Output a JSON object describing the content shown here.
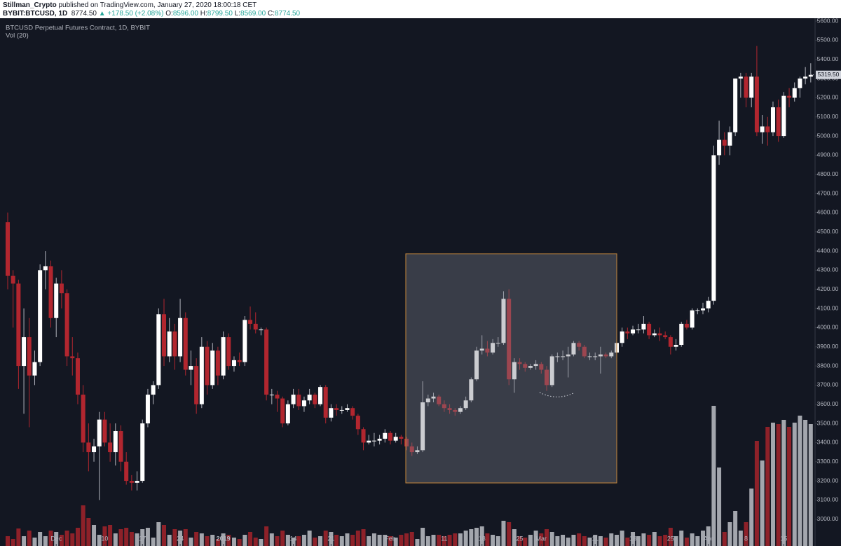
{
  "header": {
    "author": "Stillman_Crypto",
    "published": "published on TradingView.com, January 27, 2020 18:00:18 CET",
    "symbol": "BYBIT:BTCUSD, 1D",
    "price": "8774.50",
    "change": "▲ +178.50 (+2.08%)",
    "ohlc": [
      {
        "label": "O:",
        "value": "8596.00"
      },
      {
        "label": "H:",
        "value": "8799.50"
      },
      {
        "label": "L:",
        "value": "8569.00"
      },
      {
        "label": "C:",
        "value": "8774.50"
      }
    ]
  },
  "chart_data": {
    "type": "candlestick",
    "title": "BTCUSD Perpetual Futures Contract, 1D, BYBIT",
    "indicator": "Vol (20)",
    "colors": {
      "up": "#ffffff",
      "down": "#b2262f",
      "volume_up": "#a3a6ad",
      "volume_down": "#8e2129",
      "axis_text": "#b2b5be"
    },
    "ohlc": [
      [
        4550,
        4600,
        4200,
        4270
      ],
      [
        4270,
        4300,
        4000,
        4230
      ],
      [
        4230,
        4250,
        3680,
        3800
      ],
      [
        3800,
        4100,
        3550,
        3950
      ],
      [
        3950,
        4050,
        3480,
        3750
      ],
      [
        3750,
        3880,
        3700,
        3820
      ],
      [
        3820,
        4330,
        3800,
        4300
      ],
      [
        4300,
        4400,
        4200,
        4320
      ],
      [
        4320,
        4350,
        4000,
        4050
      ],
      [
        4050,
        4260,
        3950,
        4230
      ],
      [
        4230,
        4300,
        4100,
        4180
      ],
      [
        4180,
        4200,
        3800,
        3850
      ],
      [
        3850,
        3950,
        3750,
        3840
      ],
      [
        3840,
        3870,
        3600,
        3650
      ],
      [
        3650,
        3700,
        3350,
        3400
      ],
      [
        3400,
        3500,
        3250,
        3350
      ],
      [
        3350,
        3420,
        3300,
        3380
      ],
      [
        3380,
        3560,
        3100,
        3520
      ],
      [
        3520,
        3560,
        3380,
        3400
      ],
      [
        3400,
        3500,
        3300,
        3350
      ],
      [
        3350,
        3500,
        3280,
        3460
      ],
      [
        3460,
        3490,
        3250,
        3300
      ],
      [
        3300,
        3350,
        3180,
        3200
      ],
      [
        3200,
        3230,
        3150,
        3190
      ],
      [
        3190,
        3250,
        3150,
        3200
      ],
      [
        3200,
        3520,
        3190,
        3500
      ],
      [
        3500,
        3680,
        3480,
        3650
      ],
      [
        3650,
        3720,
        3600,
        3700
      ],
      [
        3700,
        4100,
        3680,
        4070
      ],
      [
        4070,
        4150,
        3800,
        3850
      ],
      [
        3850,
        4050,
        3820,
        3980
      ],
      [
        3980,
        4020,
        3780,
        3850
      ],
      [
        3850,
        4150,
        3820,
        4050
      ],
      [
        4050,
        4080,
        3750,
        3780
      ],
      [
        3780,
        3880,
        3700,
        3800
      ],
      [
        3800,
        3840,
        3550,
        3600
      ],
      [
        3600,
        3950,
        3580,
        3900
      ],
      [
        3900,
        3930,
        3650,
        3700
      ],
      [
        3700,
        3920,
        3680,
        3880
      ],
      [
        3880,
        3900,
        3700,
        3750
      ],
      [
        3750,
        3980,
        3730,
        3950
      ],
      [
        3950,
        3970,
        3780,
        3800
      ],
      [
        3800,
        3850,
        3770,
        3830
      ],
      [
        3830,
        3870,
        3800,
        3820
      ],
      [
        3820,
        4060,
        3800,
        4040
      ],
      [
        4040,
        4110,
        3990,
        4020
      ],
      [
        4020,
        4080,
        3970,
        3990
      ],
      [
        3990,
        4000,
        3960,
        3990
      ],
      [
        3990,
        4000,
        3620,
        3650
      ],
      [
        3650,
        3680,
        3600,
        3650
      ],
      [
        3650,
        3670,
        3560,
        3630
      ],
      [
        3630,
        3640,
        3480,
        3500
      ],
      [
        3500,
        3620,
        3490,
        3600
      ],
      [
        3600,
        3680,
        3580,
        3650
      ],
      [
        3650,
        3680,
        3570,
        3590
      ],
      [
        3590,
        3640,
        3560,
        3620
      ],
      [
        3620,
        3680,
        3600,
        3650
      ],
      [
        3650,
        3660,
        3580,
        3600
      ],
      [
        3600,
        3700,
        3590,
        3690
      ],
      [
        3690,
        3700,
        3500,
        3530
      ],
      [
        3530,
        3600,
        3510,
        3580
      ],
      [
        3580,
        3600,
        3540,
        3570
      ],
      [
        3570,
        3590,
        3550,
        3570
      ],
      [
        3570,
        3600,
        3560,
        3580
      ],
      [
        3580,
        3590,
        3520,
        3540
      ],
      [
        3540,
        3550,
        3440,
        3470
      ],
      [
        3470,
        3480,
        3360,
        3400
      ],
      [
        3400,
        3440,
        3390,
        3410
      ],
      [
        3410,
        3450,
        3380,
        3410
      ],
      [
        3410,
        3440,
        3390,
        3420
      ],
      [
        3420,
        3470,
        3400,
        3450
      ],
      [
        3450,
        3460,
        3390,
        3410
      ],
      [
        3410,
        3450,
        3400,
        3430
      ],
      [
        3430,
        3440,
        3390,
        3420
      ],
      [
        3420,
        3430,
        3360,
        3380
      ],
      [
        3380,
        3400,
        3330,
        3350
      ],
      [
        3350,
        3380,
        3340,
        3360
      ],
      [
        3360,
        3720,
        3350,
        3610
      ],
      [
        3610,
        3650,
        3590,
        3630
      ],
      [
        3630,
        3660,
        3610,
        3640
      ],
      [
        3640,
        3650,
        3590,
        3600
      ],
      [
        3600,
        3620,
        3560,
        3580
      ],
      [
        3580,
        3600,
        3550,
        3570
      ],
      [
        3570,
        3580,
        3540,
        3560
      ],
      [
        3560,
        3590,
        3550,
        3580
      ],
      [
        3580,
        3640,
        3570,
        3620
      ],
      [
        3620,
        3740,
        3610,
        3730
      ],
      [
        3730,
        3900,
        3720,
        3880
      ],
      [
        3880,
        3960,
        3860,
        3890
      ],
      [
        3890,
        3930,
        3850,
        3870
      ],
      [
        3870,
        3940,
        3860,
        3920
      ],
      [
        3920,
        3950,
        3900,
        3920
      ],
      [
        3920,
        4190,
        3910,
        4150
      ],
      [
        4150,
        4200,
        3700,
        3730
      ],
      [
        3730,
        3840,
        3660,
        3820
      ],
      [
        3820,
        3840,
        3780,
        3810
      ],
      [
        3810,
        3820,
        3770,
        3790
      ],
      [
        3790,
        3810,
        3780,
        3800
      ],
      [
        3800,
        3830,
        3780,
        3810
      ],
      [
        3810,
        3820,
        3760,
        3780
      ],
      [
        3780,
        3800,
        3670,
        3700
      ],
      [
        3700,
        3860,
        3690,
        3850
      ],
      [
        3850,
        3870,
        3820,
        3850
      ],
      [
        3850,
        3880,
        3830,
        3850
      ],
      [
        3850,
        3900,
        3740,
        3860
      ],
      [
        3860,
        3930,
        3850,
        3920
      ],
      [
        3920,
        3930,
        3880,
        3900
      ],
      [
        3900,
        3910,
        3840,
        3850
      ],
      [
        3850,
        3870,
        3830,
        3850
      ],
      [
        3850,
        3870,
        3830,
        3850
      ],
      [
        3850,
        3900,
        3760,
        3860
      ],
      [
        3860,
        3870,
        3840,
        3850
      ],
      [
        3850,
        3880,
        3840,
        3870
      ],
      [
        3870,
        3940,
        3860,
        3920
      ],
      [
        3920,
        4000,
        3900,
        3980
      ],
      [
        3980,
        4000,
        3940,
        3970
      ],
      [
        3970,
        4010,
        3960,
        3990
      ],
      [
        3990,
        4020,
        3970,
        3990
      ],
      [
        3990,
        4060,
        3970,
        4020
      ],
      [
        4020,
        4030,
        3940,
        3960
      ],
      [
        3960,
        3990,
        3950,
        3970
      ],
      [
        3970,
        4000,
        3930,
        3960
      ],
      [
        3960,
        3980,
        3940,
        3950
      ],
      [
        3950,
        3960,
        3860,
        3900
      ],
      [
        3900,
        3940,
        3880,
        3910
      ],
      [
        3910,
        4030,
        3900,
        4020
      ],
      [
        4020,
        4040,
        3990,
        4000
      ],
      [
        4000,
        4100,
        3990,
        4090
      ],
      [
        4090,
        4100,
        4070,
        4090
      ],
      [
        4090,
        4130,
        4070,
        4100
      ],
      [
        4100,
        4160,
        4080,
        4140
      ],
      [
        4140,
        4950,
        4120,
        4900
      ],
      [
        4900,
        5080,
        4850,
        4980
      ],
      [
        4980,
        5020,
        4900,
        4950
      ],
      [
        4950,
        5050,
        4900,
        5020
      ],
      [
        5020,
        5300,
        5000,
        5300
      ],
      [
        5300,
        5330,
        5200,
        5310
      ],
      [
        5310,
        5330,
        5150,
        5200
      ],
      [
        5200,
        5330,
        5150,
        5310
      ],
      [
        5310,
        5470,
        5000,
        5020
      ],
      [
        5020,
        5110,
        4960,
        5050
      ],
      [
        5050,
        5100,
        4950,
        5020
      ],
      [
        5020,
        5180,
        5000,
        5150
      ],
      [
        5150,
        5190,
        4970,
        5000
      ],
      [
        5000,
        5230,
        4990,
        5210
      ],
      [
        5210,
        5250,
        5150,
        5200
      ],
      [
        5200,
        5280,
        5180,
        5250
      ],
      [
        5250,
        5310,
        5200,
        5300
      ],
      [
        5300,
        5360,
        5270,
        5310
      ],
      [
        5310,
        5380,
        5280,
        5319.5
      ]
    ],
    "volume": [
      14,
      10,
      25,
      14,
      22,
      12,
      20,
      14,
      22,
      20,
      16,
      22,
      18,
      26,
      58,
      40,
      30,
      16,
      28,
      30,
      18,
      24,
      26,
      20,
      18,
      24,
      26,
      12,
      34,
      30,
      16,
      24,
      22,
      24,
      12,
      20,
      18,
      14,
      16,
      10,
      18,
      16,
      12,
      10,
      16,
      20,
      12,
      10,
      28,
      18,
      14,
      22,
      16,
      12,
      14,
      16,
      22,
      12,
      14,
      22,
      20,
      16,
      14,
      18,
      16,
      22,
      24,
      14,
      18,
      16,
      16,
      14,
      12,
      16,
      18,
      20,
      10,
      26,
      14,
      16,
      16,
      14,
      16,
      18,
      18,
      22,
      24,
      26,
      28,
      18,
      16,
      14,
      36,
      34,
      24,
      14,
      12,
      16,
      22,
      18,
      24,
      20,
      14,
      16,
      12,
      16,
      18,
      14,
      12,
      16,
      14,
      12,
      18,
      16,
      22,
      12,
      20,
      14,
      18,
      16,
      20,
      14,
      16,
      26,
      14,
      22,
      12,
      18,
      14,
      22,
      28,
      200,
      112,
      20,
      34,
      50,
      22,
      34,
      82,
      150,
      122,
      170,
      176,
      174,
      180,
      170,
      176,
      186,
      180,
      174
    ],
    "ylim": [
      2860,
      5615
    ],
    "yticks": [
      {
        "value": 3000,
        "label": "3000.00"
      },
      {
        "value": 3100,
        "label": "3100.00"
      },
      {
        "value": 3200,
        "label": "3200.00"
      },
      {
        "value": 3300,
        "label": "3300.00"
      },
      {
        "value": 3400,
        "label": "3400.00"
      },
      {
        "value": 3500,
        "label": "3500.00"
      },
      {
        "value": 3600,
        "label": "3600.00"
      },
      {
        "value": 3700,
        "label": "3700.00"
      },
      {
        "value": 3800,
        "label": "3800.00"
      },
      {
        "value": 3900,
        "label": "3900.00"
      },
      {
        "value": 4000,
        "label": "4000.00"
      },
      {
        "value": 4100,
        "label": "4100.00"
      },
      {
        "value": 4200,
        "label": "4200.00"
      },
      {
        "value": 4300,
        "label": "4300.00"
      },
      {
        "value": 4400,
        "label": "4400.00"
      },
      {
        "value": 4500,
        "label": "4500.00"
      },
      {
        "value": 4600,
        "label": "4600.00"
      },
      {
        "value": 4700,
        "label": "4700.00"
      },
      {
        "value": 4800,
        "label": "4800.00"
      },
      {
        "value": 4900,
        "label": "4900.00"
      },
      {
        "value": 5000,
        "label": "5000.00"
      },
      {
        "value": 5100,
        "label": "5100.00"
      },
      {
        "value": 5200,
        "label": "5200.00"
      },
      {
        "value": 5300,
        "label": "5300.00"
      },
      {
        "value": 5400,
        "label": "5400.00"
      },
      {
        "value": 5500,
        "label": "5500.00"
      },
      {
        "value": 5600,
        "label": "5600.00"
      }
    ],
    "xticks": [
      {
        "value": 9,
        "label": "Dec"
      },
      {
        "value": 18,
        "label": "10"
      },
      {
        "value": 25,
        "label": "17"
      },
      {
        "value": 32,
        "label": "24"
      },
      {
        "value": 40,
        "label": "2019"
      },
      {
        "value": 53,
        "label": "14"
      },
      {
        "value": 60,
        "label": "21"
      },
      {
        "value": 71,
        "label": "Feb"
      },
      {
        "value": 81,
        "label": "11"
      },
      {
        "value": 88,
        "label": "18"
      },
      {
        "value": 95,
        "label": "25"
      },
      {
        "value": 99,
        "label": "Mar"
      },
      {
        "value": 109,
        "label": "11"
      },
      {
        "value": 116,
        "label": "18"
      },
      {
        "value": 123,
        "label": "25"
      },
      {
        "value": 130,
        "label": "Apr"
      },
      {
        "value": 137,
        "label": "8"
      },
      {
        "value": 144,
        "label": "15"
      }
    ],
    "last_price": {
      "value": 5319.5,
      "label": "5319.50"
    }
  }
}
